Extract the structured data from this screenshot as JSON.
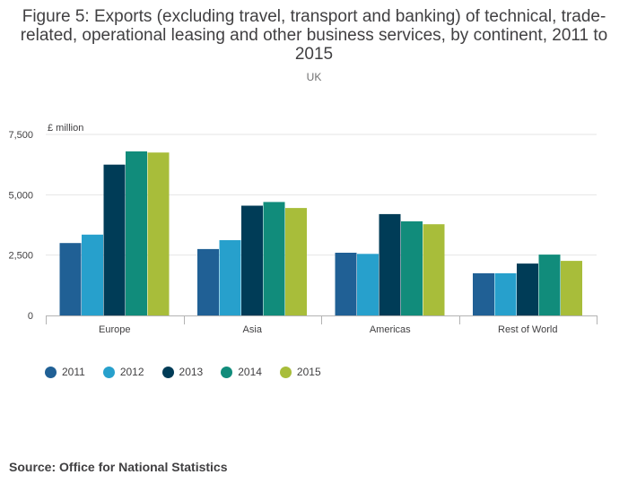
{
  "title": "Figure 5: Exports (excluding travel, transport and banking) of technical, trade-related, operational leasing and other business services, by continent, 2011 to 2015",
  "subtitle": "UK",
  "source": "Source: Office for National Statistics",
  "colors": {
    "2011": "#206095",
    "2012": "#27a0cc",
    "2013": "#003c57",
    "2014": "#118c7b",
    "2015": "#a8bd3a"
  },
  "chart_data": {
    "type": "bar",
    "title": "Figure 5: Exports (excluding travel, transport and banking) of technical, trade-related, operational leasing and other business services, by continent, 2011 to 2015",
    "subtitle": "UK",
    "xlabel": "",
    "ylabel": "£ million",
    "ylim": [
      0,
      7500
    ],
    "yticks": [
      0,
      2500,
      5000,
      7500
    ],
    "ytick_labels": [
      "0",
      "2,500",
      "5,000",
      "7,500"
    ],
    "grid": true,
    "legend_position": "bottom-left",
    "categories": [
      "Europe",
      "Asia",
      "Americas",
      "Rest of World"
    ],
    "series": [
      {
        "name": "2011",
        "values": [
          3000,
          2750,
          2600,
          1750
        ]
      },
      {
        "name": "2012",
        "values": [
          3350,
          3120,
          2550,
          1750
        ]
      },
      {
        "name": "2013",
        "values": [
          6250,
          4550,
          4200,
          2150
        ]
      },
      {
        "name": "2014",
        "values": [
          6800,
          4700,
          3900,
          2520
        ]
      },
      {
        "name": "2015",
        "values": [
          6750,
          4450,
          3780,
          2260
        ]
      }
    ]
  }
}
